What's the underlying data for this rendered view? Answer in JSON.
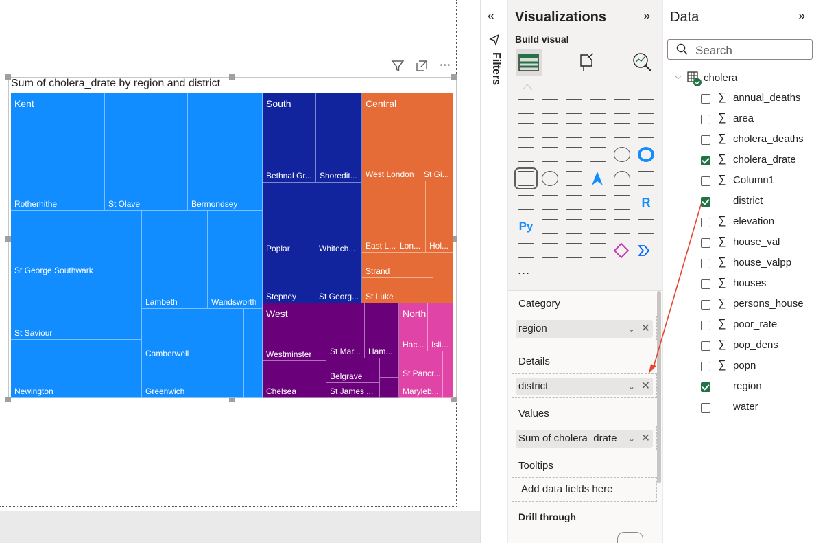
{
  "visual": {
    "title": "Sum of cholera_drate by region and district",
    "icons": [
      "filter-icon",
      "focus-mode-icon",
      "more-options-icon"
    ]
  },
  "treemap": {
    "groups": [
      {
        "name": "Kent",
        "color": "#118dff"
      },
      {
        "name": "South",
        "color": "#12239e"
      },
      {
        "name": "Central",
        "color": "#e66c37"
      },
      {
        "name": "West",
        "color": "#6b007b"
      },
      {
        "name": "North",
        "color": "#e044a7"
      }
    ],
    "districts": {
      "kent": [
        "Rotherhithe",
        "St Olave",
        "Bermondsey",
        "St George Southwark",
        "Lambeth",
        "Wandsworth",
        "St Saviour",
        "Camberwell",
        "Newington",
        "Greenwich"
      ],
      "south": [
        "Bethnal Gr...",
        "Shoredit...",
        "Poplar",
        "Whitech...",
        "Stepney",
        "St Georg..."
      ],
      "central": [
        "West London",
        "St Gi...",
        "East L...",
        "Lon...",
        "Hol...",
        "Strand",
        "St Luke"
      ],
      "west": [
        "Westminster",
        "St Mar...",
        "Ham...",
        "Belgrave",
        "Chelsea",
        "St James ..."
      ],
      "north": [
        "Hac...",
        "Isli...",
        "St Pancr...",
        "Maryleb..."
      ]
    }
  },
  "filters": {
    "label": "Filters"
  },
  "viz_pane": {
    "title": "Visualizations",
    "build_visual": "Build visual",
    "more": "...",
    "wells": [
      {
        "label": "Category",
        "value": "region"
      },
      {
        "label": "Details",
        "value": "district"
      },
      {
        "label": "Values",
        "value": "Sum of cholera_drate"
      },
      {
        "label": "Tooltips",
        "placeholder": "Add data fields here"
      }
    ],
    "drill_through": "Drill through"
  },
  "data_pane": {
    "title": "Data",
    "search_placeholder": "Search",
    "table": "cholera",
    "fields": [
      {
        "name": "annual_deaths",
        "checked": false,
        "sigma": true
      },
      {
        "name": "area",
        "checked": false,
        "sigma": true
      },
      {
        "name": "cholera_deaths",
        "checked": false,
        "sigma": true
      },
      {
        "name": "cholera_drate",
        "checked": true,
        "sigma": true
      },
      {
        "name": "Column1",
        "checked": false,
        "sigma": true
      },
      {
        "name": "district",
        "checked": true,
        "sigma": false
      },
      {
        "name": "elevation",
        "checked": false,
        "sigma": true
      },
      {
        "name": "house_val",
        "checked": false,
        "sigma": true
      },
      {
        "name": "house_valpp",
        "checked": false,
        "sigma": true
      },
      {
        "name": "houses",
        "checked": false,
        "sigma": true
      },
      {
        "name": "persons_house",
        "checked": false,
        "sigma": true
      },
      {
        "name": "poor_rate",
        "checked": false,
        "sigma": true
      },
      {
        "name": "pop_dens",
        "checked": false,
        "sigma": true
      },
      {
        "name": "popn",
        "checked": false,
        "sigma": true
      },
      {
        "name": "region",
        "checked": true,
        "sigma": false
      },
      {
        "name": "water",
        "checked": false,
        "sigma": false
      }
    ]
  },
  "annotation": {
    "arrow_color": "#e8452c"
  }
}
